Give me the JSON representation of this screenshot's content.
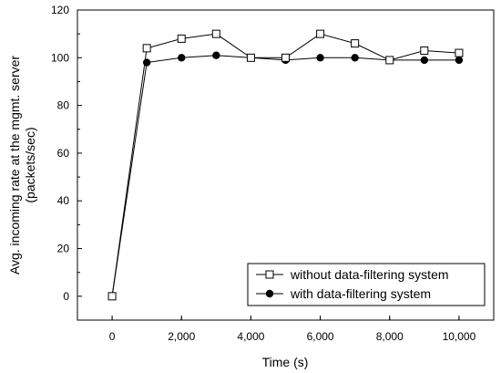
{
  "chart_data": {
    "type": "line",
    "title": "",
    "xlabel": "Time (s)",
    "ylabel": [
      "Avg. incoming rate at the mgmt. server",
      "(packets/sec)"
    ],
    "xlim": [
      -1000,
      11000
    ],
    "ylim": [
      -10,
      120
    ],
    "x_ticks": [
      0,
      2000,
      4000,
      6000,
      8000,
      10000
    ],
    "x_tick_labels": [
      "0",
      "2,000",
      "4,000",
      "6,000",
      "8,000",
      "10,000"
    ],
    "y_ticks": [
      0,
      20,
      40,
      60,
      80,
      100,
      120
    ],
    "y_tick_labels": [
      "0",
      "20",
      "40",
      "60",
      "80",
      "100",
      "120"
    ],
    "grid": false,
    "legend_position": "bottom-right",
    "series": [
      {
        "name": "without data-filtering system",
        "marker": "open-square",
        "color": "#000000",
        "x": [
          0,
          1000,
          2000,
          3000,
          4000,
          5000,
          6000,
          7000,
          8000,
          9000,
          10000
        ],
        "values": [
          0,
          104,
          108,
          110,
          100,
          100,
          110,
          106,
          99,
          103,
          102
        ]
      },
      {
        "name": "with data-filtering system",
        "marker": "filled-circle",
        "color": "#000000",
        "x": [
          0,
          1000,
          2000,
          3000,
          4000,
          5000,
          6000,
          7000,
          8000,
          9000,
          10000
        ],
        "values": [
          0,
          98,
          100,
          101,
          100,
          99,
          100,
          100,
          99,
          99,
          99
        ]
      }
    ]
  }
}
